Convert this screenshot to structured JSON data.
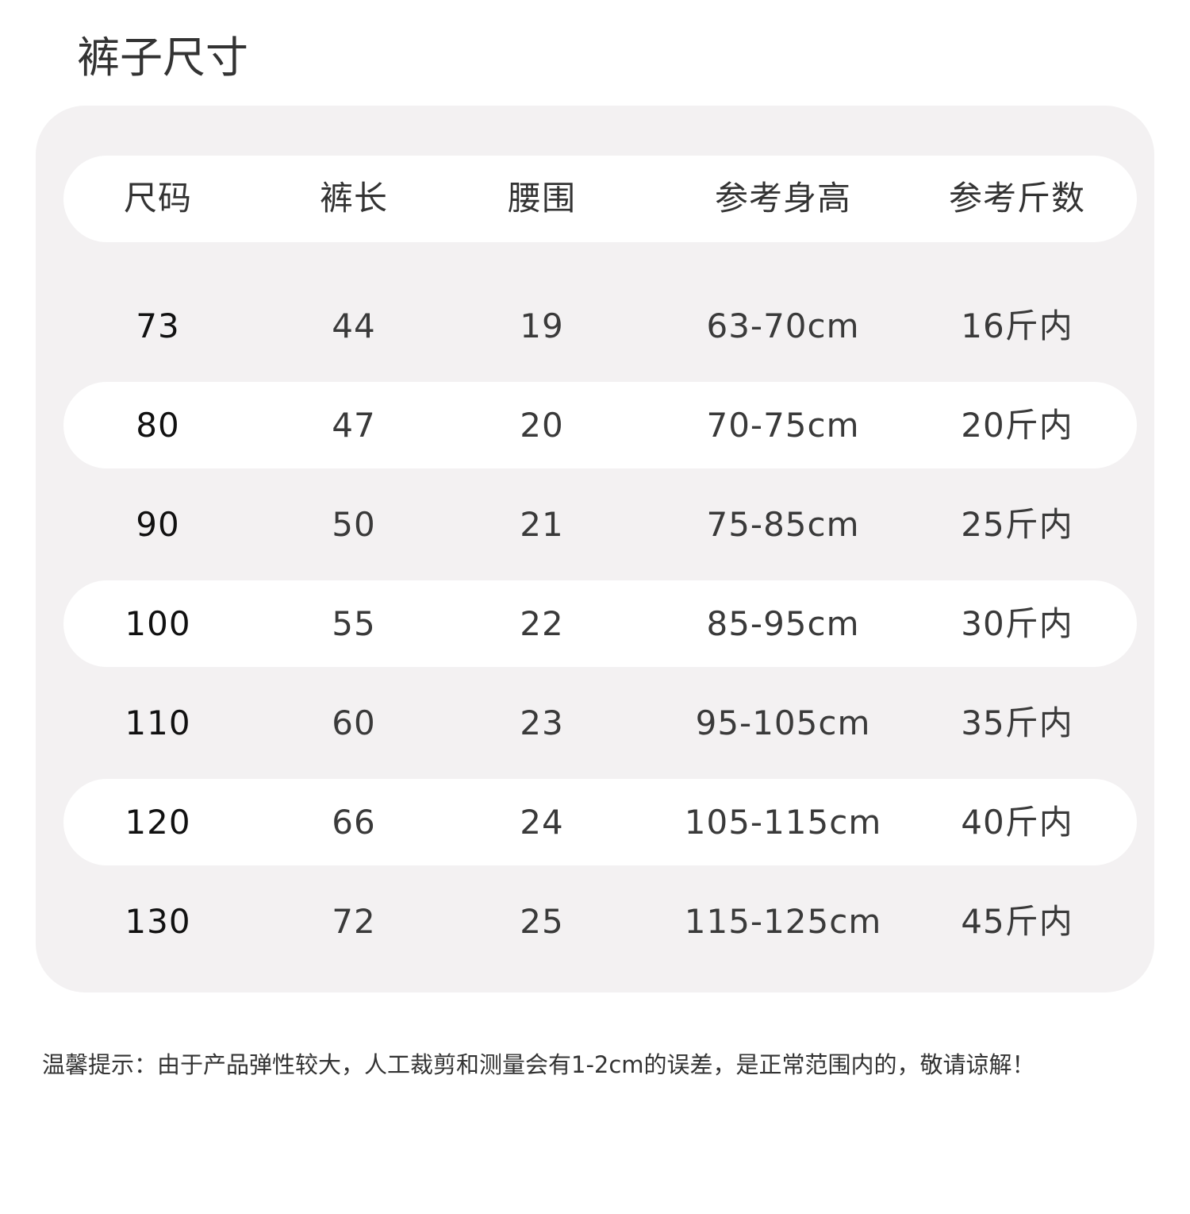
{
  "title": "裤子尺寸",
  "table": {
    "header": [
      "尺码",
      "裤长",
      "腰围",
      "参考身高",
      "参考斤数"
    ],
    "rows": [
      [
        "73",
        "44",
        "19",
        "63-70cm",
        "16斤内"
      ],
      [
        "80",
        "47",
        "20",
        "70-75cm",
        "20斤内"
      ],
      [
        "90",
        "50",
        "21",
        "75-85cm",
        "25斤内"
      ],
      [
        "100",
        "55",
        "22",
        "85-95cm",
        "30斤内"
      ],
      [
        "110",
        "60",
        "23",
        "95-105cm",
        "35斤内"
      ],
      [
        "120",
        "66",
        "24",
        "105-115cm",
        "40斤内"
      ],
      [
        "130",
        "72",
        "25",
        "115-125cm",
        "45斤内"
      ]
    ]
  },
  "note": "温馨提示：由于产品弹性较大，人工裁剪和测量会有1-2cm的误差，是正常范围内的，敬请谅解！"
}
